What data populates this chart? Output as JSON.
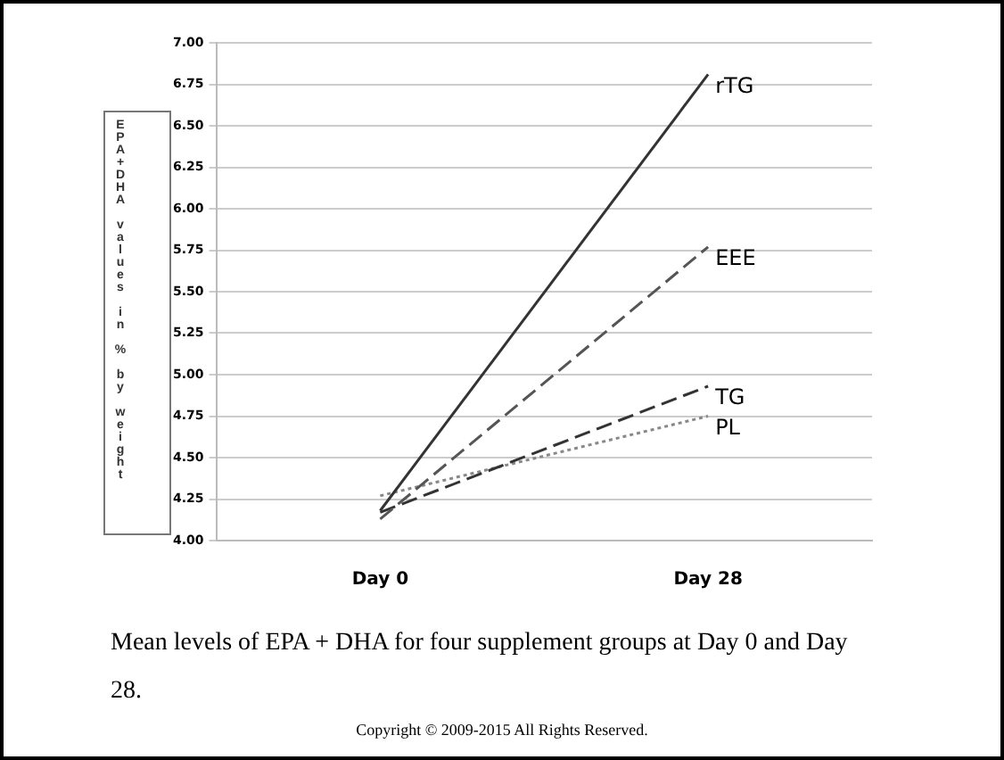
{
  "chart_data": {
    "type": "line",
    "ylabel": "EPA+DHA values in % by weight",
    "categories": [
      "Day 0",
      "Day 28"
    ],
    "series": [
      {
        "name": "rTG",
        "color": "#333333",
        "line_style": "solid",
        "values": [
          4.18,
          6.81
        ]
      },
      {
        "name": "EEE",
        "color": "#555555",
        "line_style": "dashed",
        "values": [
          4.13,
          5.77
        ]
      },
      {
        "name": "TG",
        "color": "#333333",
        "line_style": "dashed",
        "values": [
          4.17,
          4.93
        ]
      },
      {
        "name": "PL",
        "color": "#888888",
        "line_style": "dotted",
        "values": [
          4.27,
          4.75
        ]
      }
    ],
    "ylim": [
      4,
      7
    ],
    "yticks": [
      {
        "value": 4,
        "label": "4.00"
      },
      {
        "value": 4.25,
        "label": "4.25"
      },
      {
        "value": 4.5,
        "label": "4.50"
      },
      {
        "value": 4.75,
        "label": "4.75"
      },
      {
        "value": 5,
        "label": "5.00"
      },
      {
        "value": 5.25,
        "label": "5.25"
      },
      {
        "value": 5.5,
        "label": "5.50"
      },
      {
        "value": 5.75,
        "label": "5.75"
      },
      {
        "value": 6,
        "label": "6.00"
      },
      {
        "value": 6.25,
        "label": "6.25"
      },
      {
        "value": 6.5,
        "label": "6.50"
      },
      {
        "value": 6.75,
        "label": "6.75"
      },
      {
        "value": 7,
        "label": "7.00"
      }
    ],
    "grid": "y",
    "legend": false,
    "marker": "none",
    "annotations": [
      "Mean levels of EPA + DHA for four supplement groups at Day 0 and Day 28.",
      "Copyright © 2009-2015 All Rights Reserved."
    ]
  }
}
